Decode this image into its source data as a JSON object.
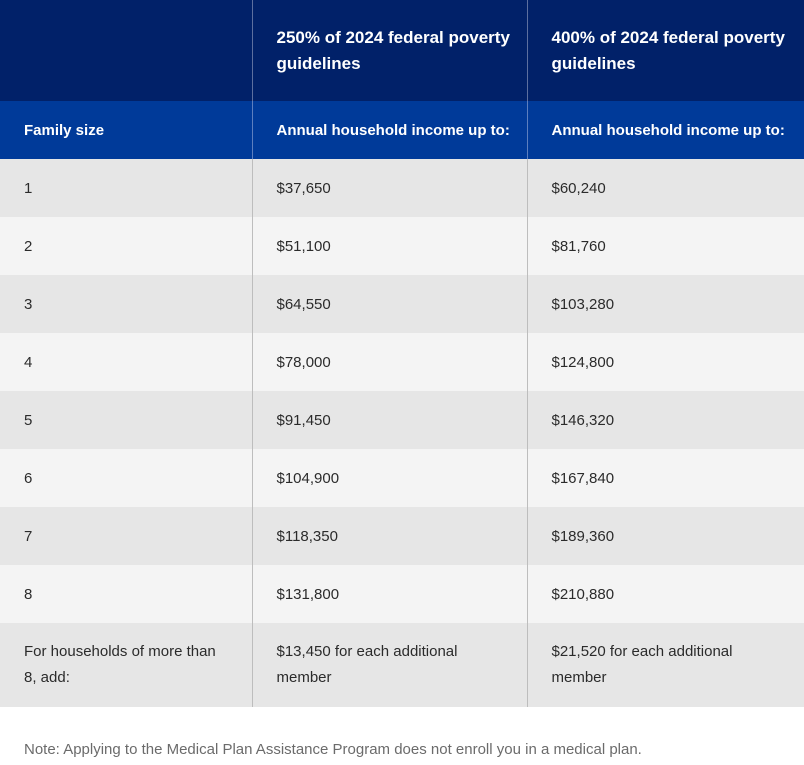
{
  "header": {
    "col1": "",
    "col2": "250% of 2024 federal poverty guidelines",
    "col3": "400% of 2024 federal poverty guidelines"
  },
  "subheader": {
    "col1": "Family size",
    "col2": "Annual household income up to:",
    "col3": "Annual household income up to:"
  },
  "rows": [
    {
      "size": "1",
      "pct250": "$37,650",
      "pct400": "$60,240"
    },
    {
      "size": "2",
      "pct250": "$51,100",
      "pct400": "$81,760"
    },
    {
      "size": "3",
      "pct250": "$64,550",
      "pct400": "$103,280"
    },
    {
      "size": "4",
      "pct250": "$78,000",
      "pct400": "$124,800"
    },
    {
      "size": "5",
      "pct250": "$91,450",
      "pct400": "$146,320"
    },
    {
      "size": "6",
      "pct250": "$104,900",
      "pct400": "$167,840"
    },
    {
      "size": "7",
      "pct250": "$118,350",
      "pct400": "$189,360"
    },
    {
      "size": "8",
      "pct250": "$131,800",
      "pct400": "$210,880"
    }
  ],
  "extra": {
    "label": "For households of more than 8, add:",
    "pct250": "$13,450 for each additional member",
    "pct400": "$21,520 for each additional member"
  },
  "note": "Note: Applying to the Medical Plan Assistance Program does not enroll you in a medical plan.",
  "colors": {
    "header_bg": "#012169",
    "subheader_bg": "#003a99",
    "row_odd": "#e6e6e6",
    "row_even": "#f4f4f4"
  }
}
